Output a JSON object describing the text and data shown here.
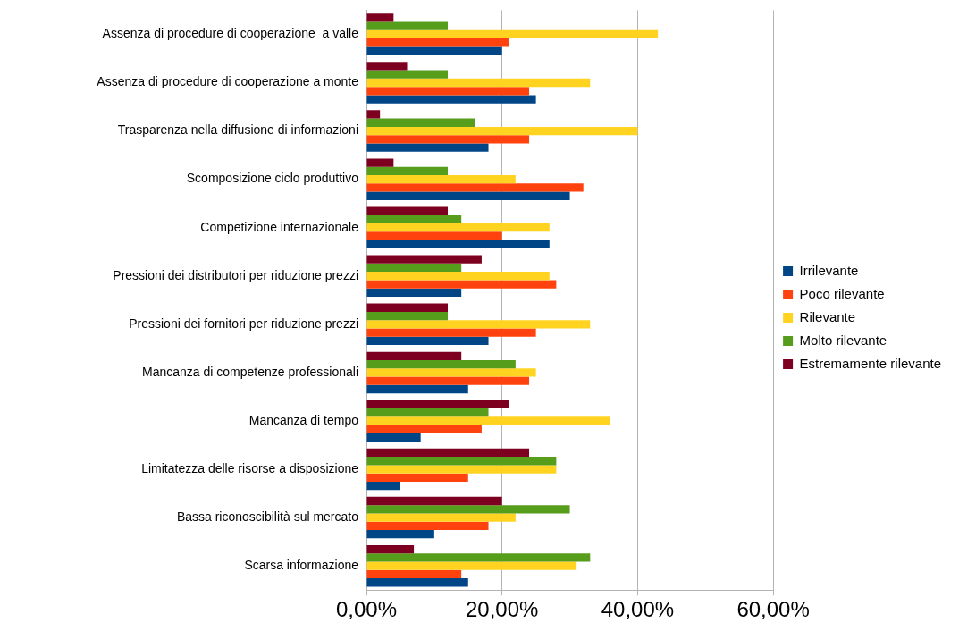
{
  "chart_data": {
    "type": "bar",
    "orientation": "horizontal",
    "categories": [
      "Assenza di procedure di cooperazione  a valle",
      "Assenza di procedure di cooperazione a monte",
      "Trasparenza nella diffusione di informazioni",
      "Scomposizione ciclo produttivo",
      "Competizione internazionale",
      "Pressioni dei distributori per riduzione prezzi",
      "Pressioni dei fornitori per riduzione prezzi",
      "Mancanza di competenze professionali",
      "Mancanza di tempo",
      "Limitatezza delle risorse a disposizione",
      "Bassa riconoscibilità sul mercato",
      "Scarsa informazione"
    ],
    "series": [
      {
        "name": "Irrilevante",
        "color": "#004586",
        "values": [
          20,
          25,
          18,
          30,
          27,
          14,
          18,
          15,
          8,
          5,
          10,
          15
        ]
      },
      {
        "name": "Poco rilevante",
        "color": "#ff420e",
        "values": [
          21,
          24,
          24,
          32,
          20,
          28,
          25,
          24,
          17,
          15,
          18,
          14
        ]
      },
      {
        "name": "Rilevante",
        "color": "#ffd320",
        "values": [
          43,
          33,
          40,
          22,
          27,
          27,
          33,
          25,
          36,
          28,
          22,
          31
        ]
      },
      {
        "name": "Molto rilevante",
        "color": "#579d1c",
        "values": [
          12,
          12,
          16,
          12,
          14,
          14,
          12,
          22,
          18,
          28,
          30,
          33
        ]
      },
      {
        "name": "Estremamente rilevante",
        "color": "#7e0021",
        "values": [
          4,
          6,
          2,
          4,
          12,
          17,
          12,
          14,
          21,
          24,
          20,
          7
        ]
      }
    ],
    "xlim": [
      0,
      60
    ],
    "xticks": [
      {
        "value": 0,
        "label": "0,00%"
      },
      {
        "value": 20,
        "label": "20,00%"
      },
      {
        "value": 40,
        "label": "40,00%"
      },
      {
        "value": 60,
        "label": "60,00%"
      }
    ],
    "grid": "x",
    "legend": "right"
  }
}
